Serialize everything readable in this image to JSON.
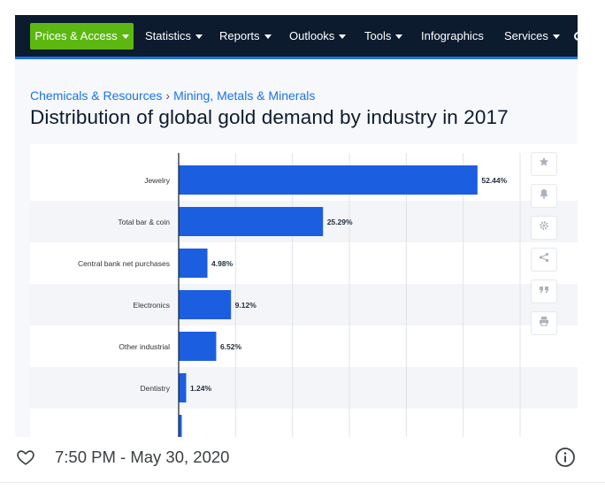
{
  "navbar": {
    "primary_label": "Prices & Access",
    "items": [
      {
        "label": "Statistics",
        "dropdown": true
      },
      {
        "label": "Reports",
        "dropdown": true
      },
      {
        "label": "Outlooks",
        "dropdown": true
      },
      {
        "label": "Tools",
        "dropdown": true
      },
      {
        "label": "Infographics",
        "dropdown": false
      },
      {
        "label": "Services",
        "dropdown": true
      }
    ]
  },
  "breadcrumb": {
    "items": [
      "Chemicals & Resources",
      "Mining, Metals & Minerals"
    ],
    "separator": "›"
  },
  "page": {
    "title": "Distribution of global gold demand by industry in 2017"
  },
  "side_tools": [
    "star-icon",
    "bell-icon",
    "gear-icon",
    "share-icon",
    "quote-icon",
    "print-icon"
  ],
  "chart_data": {
    "type": "bar",
    "orientation": "horizontal",
    "categories": [
      "Jewelry",
      "Total bar & coin",
      "Central bank net purchases",
      "Electronics",
      "Other industrial",
      "Dentistry"
    ],
    "values": [
      52.44,
      25.29,
      4.98,
      9.12,
      6.52,
      1.24
    ],
    "data_labels": [
      "52.44%",
      "25.29%",
      "4.98%",
      "9.12%",
      "6.52%",
      "1.24%"
    ],
    "unit": "%",
    "xlim": [
      0,
      60
    ],
    "grid": true,
    "bar_color": "#1c5ee0"
  },
  "footer": {
    "timestamp": "7:50 PM - May 30, 2020"
  },
  "colors": {
    "navbar_bg": "#0d1b2e",
    "accent_green": "#5cb811",
    "link_blue": "#1a73e8"
  }
}
